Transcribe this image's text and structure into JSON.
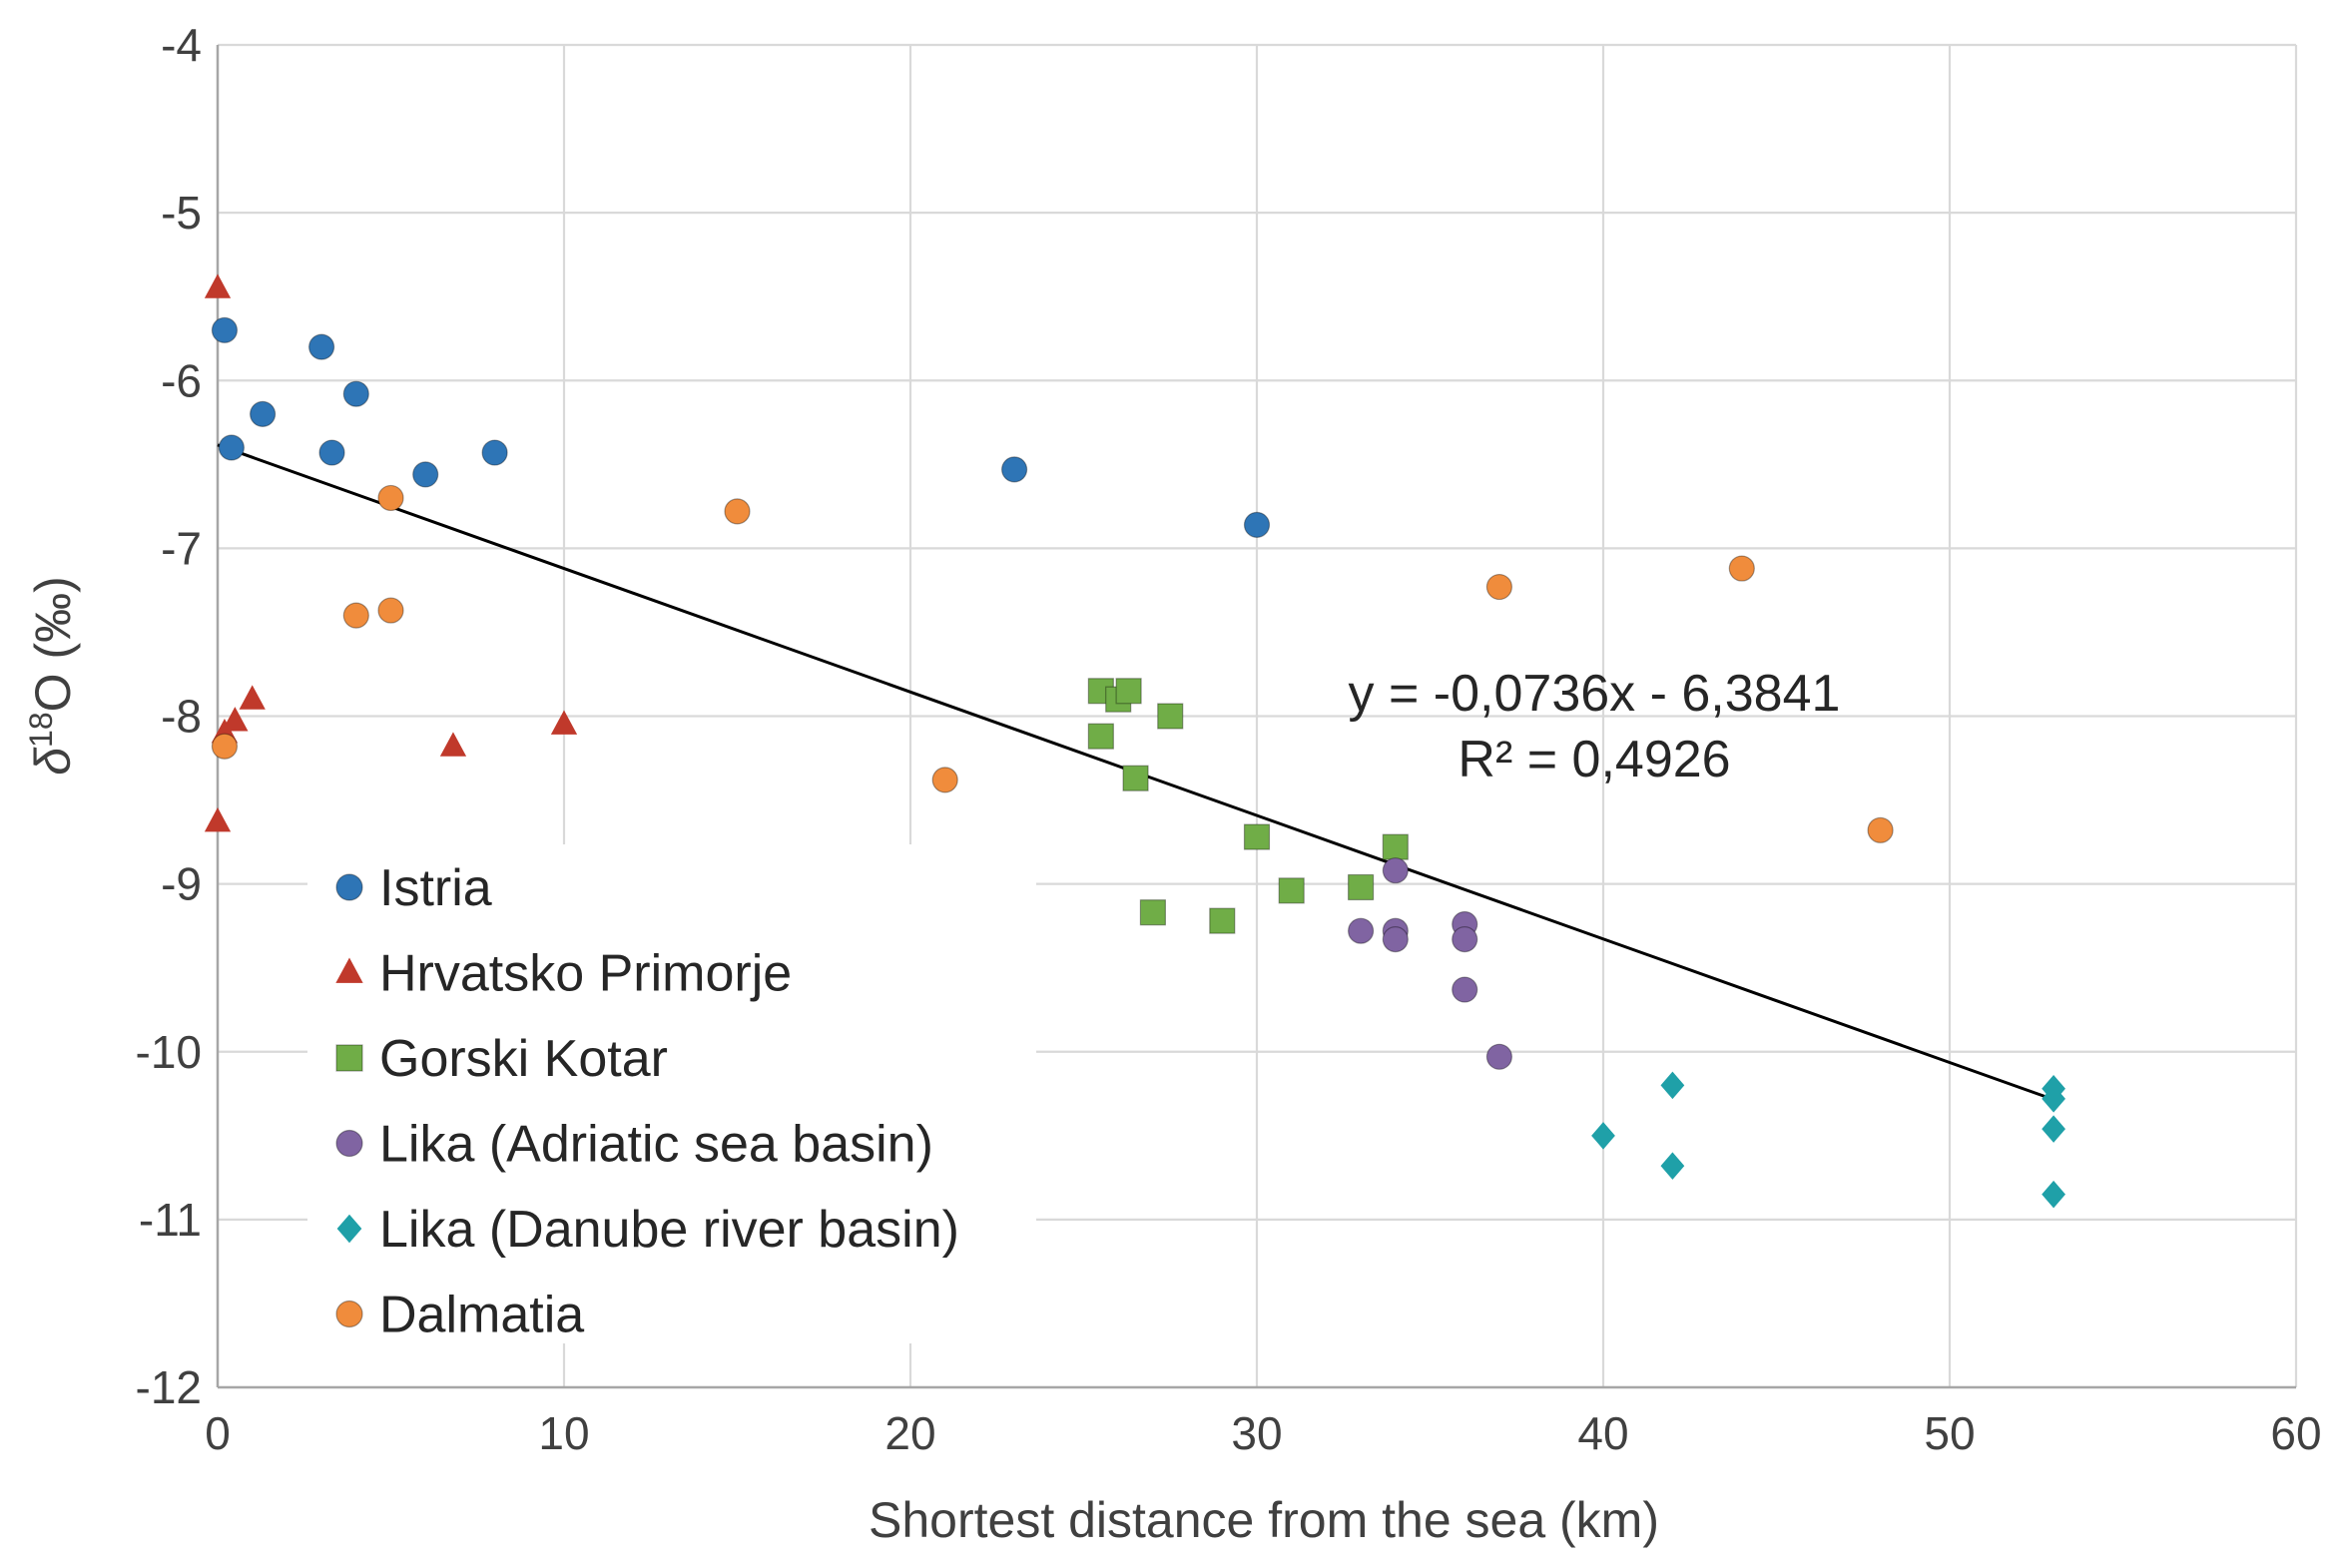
{
  "chart_data": {
    "type": "scatter",
    "title": "",
    "xlabel": "Shortest distance from the sea (km)",
    "ylabel_prefix": "δ",
    "ylabel_sup": "18",
    "ylabel_rest": "O (‰)",
    "xlim": [
      0,
      60
    ],
    "ylim": [
      -12,
      -4
    ],
    "xticks": [
      0,
      10,
      20,
      30,
      40,
      50,
      60
    ],
    "yticks": [
      -12,
      -11,
      -10,
      -9,
      -8,
      -7,
      -6,
      -5,
      -4
    ],
    "grid": true,
    "legend_position": "lower-left",
    "trendline": {
      "slope": -0.0736,
      "intercept": -6.3841,
      "x_range": [
        0,
        53
      ],
      "equation_label": "y = -0,0736x - 6,3841",
      "r2_label": "R² = 0,4926"
    },
    "series": [
      {
        "name": "Istria",
        "marker": "circle",
        "color": "#2e75b6",
        "points": [
          [
            0.2,
            -5.7
          ],
          [
            0.4,
            -6.4
          ],
          [
            1.3,
            -6.2
          ],
          [
            3.0,
            -5.8
          ],
          [
            3.3,
            -6.43
          ],
          [
            4.0,
            -6.08
          ],
          [
            6.0,
            -6.56
          ],
          [
            8.0,
            -6.43
          ],
          [
            23.0,
            -6.53
          ],
          [
            30.0,
            -6.86
          ]
        ]
      },
      {
        "name": "Hrvatsko Primorje",
        "marker": "triangle",
        "color": "#c0392b",
        "points": [
          [
            0.0,
            -5.45
          ],
          [
            0.0,
            -8.63
          ],
          [
            0.2,
            -8.1
          ],
          [
            0.5,
            -8.03
          ],
          [
            1.0,
            -7.9
          ],
          [
            6.8,
            -8.18
          ],
          [
            10.0,
            -8.05
          ]
        ]
      },
      {
        "name": "Gorski Kotar",
        "marker": "square",
        "color": "#70ad47",
        "points": [
          [
            25.5,
            -7.85
          ],
          [
            25.5,
            -8.12
          ],
          [
            26.0,
            -7.9
          ],
          [
            26.3,
            -7.85
          ],
          [
            26.5,
            -8.37
          ],
          [
            27.0,
            -9.17
          ],
          [
            27.5,
            -8.0
          ],
          [
            29.0,
            -9.22
          ],
          [
            30.0,
            -8.72
          ],
          [
            31.0,
            -9.04
          ],
          [
            33.0,
            -9.02
          ],
          [
            34.0,
            -8.78
          ]
        ]
      },
      {
        "name": "Lika (Adriatic sea basin)",
        "marker": "circle",
        "color": "#8064a2",
        "points": [
          [
            33.0,
            -9.28
          ],
          [
            34.0,
            -8.92
          ],
          [
            34.0,
            -9.28
          ],
          [
            34.0,
            -9.33
          ],
          [
            36.0,
            -9.24
          ],
          [
            36.0,
            -9.33
          ],
          [
            36.0,
            -9.63
          ],
          [
            37.0,
            -10.03
          ]
        ]
      },
      {
        "name": "Lika (Danube river basin)",
        "marker": "diamond",
        "color": "#1fa0a8",
        "points": [
          [
            40.0,
            -10.5
          ],
          [
            42.0,
            -10.2
          ],
          [
            42.0,
            -10.68
          ],
          [
            53.0,
            -10.22
          ],
          [
            53.0,
            -10.28
          ],
          [
            53.0,
            -10.46
          ],
          [
            53.0,
            -10.85
          ]
        ]
      },
      {
        "name": "Dalmatia",
        "marker": "circle",
        "color": "#f08c3c",
        "points": [
          [
            0.2,
            -8.18
          ],
          [
            4.0,
            -7.4
          ],
          [
            5.0,
            -6.7
          ],
          [
            5.0,
            -7.37
          ],
          [
            15.0,
            -6.78
          ],
          [
            21.0,
            -8.38
          ],
          [
            37.0,
            -7.23
          ],
          [
            44.0,
            -7.12
          ],
          [
            48.0,
            -8.68
          ]
        ]
      }
    ]
  }
}
